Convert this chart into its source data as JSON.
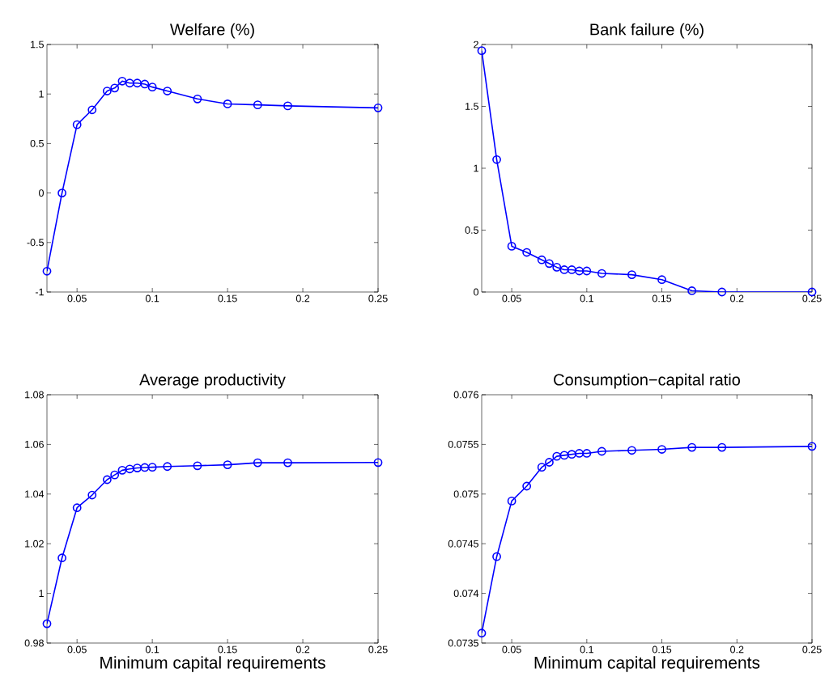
{
  "chart_data": [
    {
      "type": "line",
      "title": "Welfare (%)",
      "x": [
        0.03,
        0.04,
        0.05,
        0.06,
        0.07,
        0.075,
        0.08,
        0.085,
        0.09,
        0.095,
        0.1,
        0.11,
        0.13,
        0.15,
        0.17,
        0.19,
        0.25
      ],
      "series": [
        {
          "color": "#0000ff",
          "values": [
            -0.79,
            0.0,
            0.69,
            0.84,
            1.03,
            1.06,
            1.13,
            1.11,
            1.11,
            1.1,
            1.07,
            1.03,
            0.95,
            0.9,
            0.89,
            0.88,
            0.86
          ]
        }
      ],
      "xlim": [
        0.03,
        0.25
      ],
      "ylim": [
        -1,
        1.5
      ],
      "xticks": [
        0.05,
        0.1,
        0.15,
        0.2,
        0.25
      ],
      "yticks": [
        -1,
        -0.5,
        0,
        0.5,
        1,
        1.5
      ],
      "marker": "circle",
      "line_style": "solid"
    },
    {
      "type": "line",
      "title": "Bank failure (%)",
      "x": [
        0.03,
        0.04,
        0.05,
        0.06,
        0.07,
        0.075,
        0.08,
        0.085,
        0.09,
        0.095,
        0.1,
        0.11,
        0.13,
        0.15,
        0.17,
        0.19,
        0.25
      ],
      "series": [
        {
          "color": "#0000ff",
          "values": [
            1.95,
            1.07,
            0.37,
            0.32,
            0.26,
            0.23,
            0.2,
            0.18,
            0.18,
            0.17,
            0.17,
            0.15,
            0.14,
            0.1,
            0.01,
            0.0,
            0.0
          ]
        }
      ],
      "xlim": [
        0.03,
        0.25
      ],
      "ylim": [
        0,
        2
      ],
      "xticks": [
        0.05,
        0.1,
        0.15,
        0.2,
        0.25
      ],
      "yticks": [
        0,
        0.5,
        1,
        1.5,
        2
      ],
      "marker": "circle",
      "line_style": "solid"
    },
    {
      "type": "line",
      "title": "Average productivity",
      "xlabel": "Minimum capital requirements",
      "x": [
        0.03,
        0.04,
        0.05,
        0.06,
        0.07,
        0.075,
        0.08,
        0.085,
        0.09,
        0.095,
        0.1,
        0.11,
        0.13,
        0.15,
        0.17,
        0.19,
        0.25
      ],
      "series": [
        {
          "color": "#0000ff",
          "values": [
            0.9878,
            1.0143,
            1.0345,
            1.0396,
            1.0458,
            1.0477,
            1.0496,
            1.0501,
            1.0505,
            1.0507,
            1.0508,
            1.0511,
            1.0514,
            1.0518,
            1.0526,
            1.0526,
            1.0527
          ]
        }
      ],
      "xlim": [
        0.03,
        0.25
      ],
      "ylim": [
        0.98,
        1.08
      ],
      "xticks": [
        0.05,
        0.1,
        0.15,
        0.2,
        0.25
      ],
      "yticks": [
        0.98,
        1,
        1.02,
        1.04,
        1.06,
        1.08
      ],
      "marker": "circle",
      "line_style": "solid"
    },
    {
      "type": "line",
      "title": "Consumption−capital ratio",
      "xlabel": "Minimum capital requirements",
      "x": [
        0.03,
        0.04,
        0.05,
        0.06,
        0.07,
        0.075,
        0.08,
        0.085,
        0.09,
        0.095,
        0.1,
        0.11,
        0.13,
        0.15,
        0.17,
        0.19,
        0.25
      ],
      "series": [
        {
          "color": "#0000ff",
          "values": [
            0.0736,
            0.07437,
            0.07493,
            0.07508,
            0.07527,
            0.07532,
            0.07538,
            0.07539,
            0.0754,
            0.07541,
            0.07541,
            0.07543,
            0.07544,
            0.07545,
            0.07547,
            0.07547,
            0.07548
          ]
        }
      ],
      "xlim": [
        0.03,
        0.25
      ],
      "ylim": [
        0.0735,
        0.076
      ],
      "xticks": [
        0.05,
        0.1,
        0.15,
        0.2,
        0.25
      ],
      "yticks": [
        0.0735,
        0.074,
        0.0745,
        0.075,
        0.0755,
        0.076
      ],
      "marker": "circle",
      "line_style": "solid"
    }
  ]
}
